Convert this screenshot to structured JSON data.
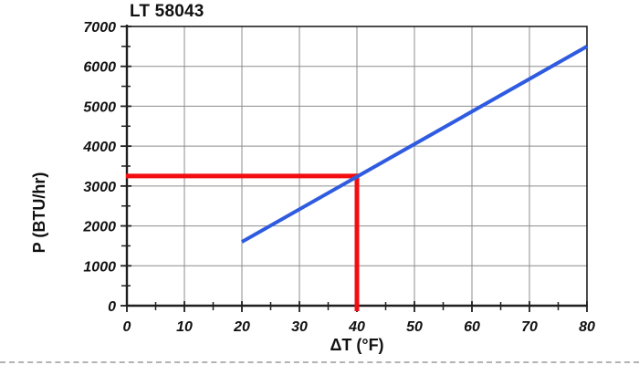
{
  "chart_data": {
    "type": "line",
    "title": "LT 58043",
    "xlabel": "ΔT (°F)",
    "ylabel": "P (BTU/hr)",
    "xlim": [
      0,
      80
    ],
    "ylim": [
      0,
      7000
    ],
    "x_ticks": [
      0,
      10,
      20,
      30,
      40,
      50,
      60,
      70,
      80
    ],
    "x_minor_step": 5,
    "y_ticks": [
      0,
      1000,
      2000,
      3000,
      4000,
      5000,
      6000,
      7000
    ],
    "y_minor_step": 500,
    "grid": true,
    "legend": "none",
    "series": [
      {
        "name": "heat-output-line",
        "color": "#2e5be0",
        "width": 4,
        "points": [
          [
            20,
            1600
          ],
          [
            80,
            6500
          ]
        ]
      }
    ],
    "annotation": {
      "name": "reading-crosshair",
      "color": "#f20d10",
      "width": 5,
      "x": 40,
      "y": 3250
    },
    "colors": {
      "grid": "#8c8c8c",
      "axis": "#1f1f1f",
      "text": "#111111"
    }
  }
}
